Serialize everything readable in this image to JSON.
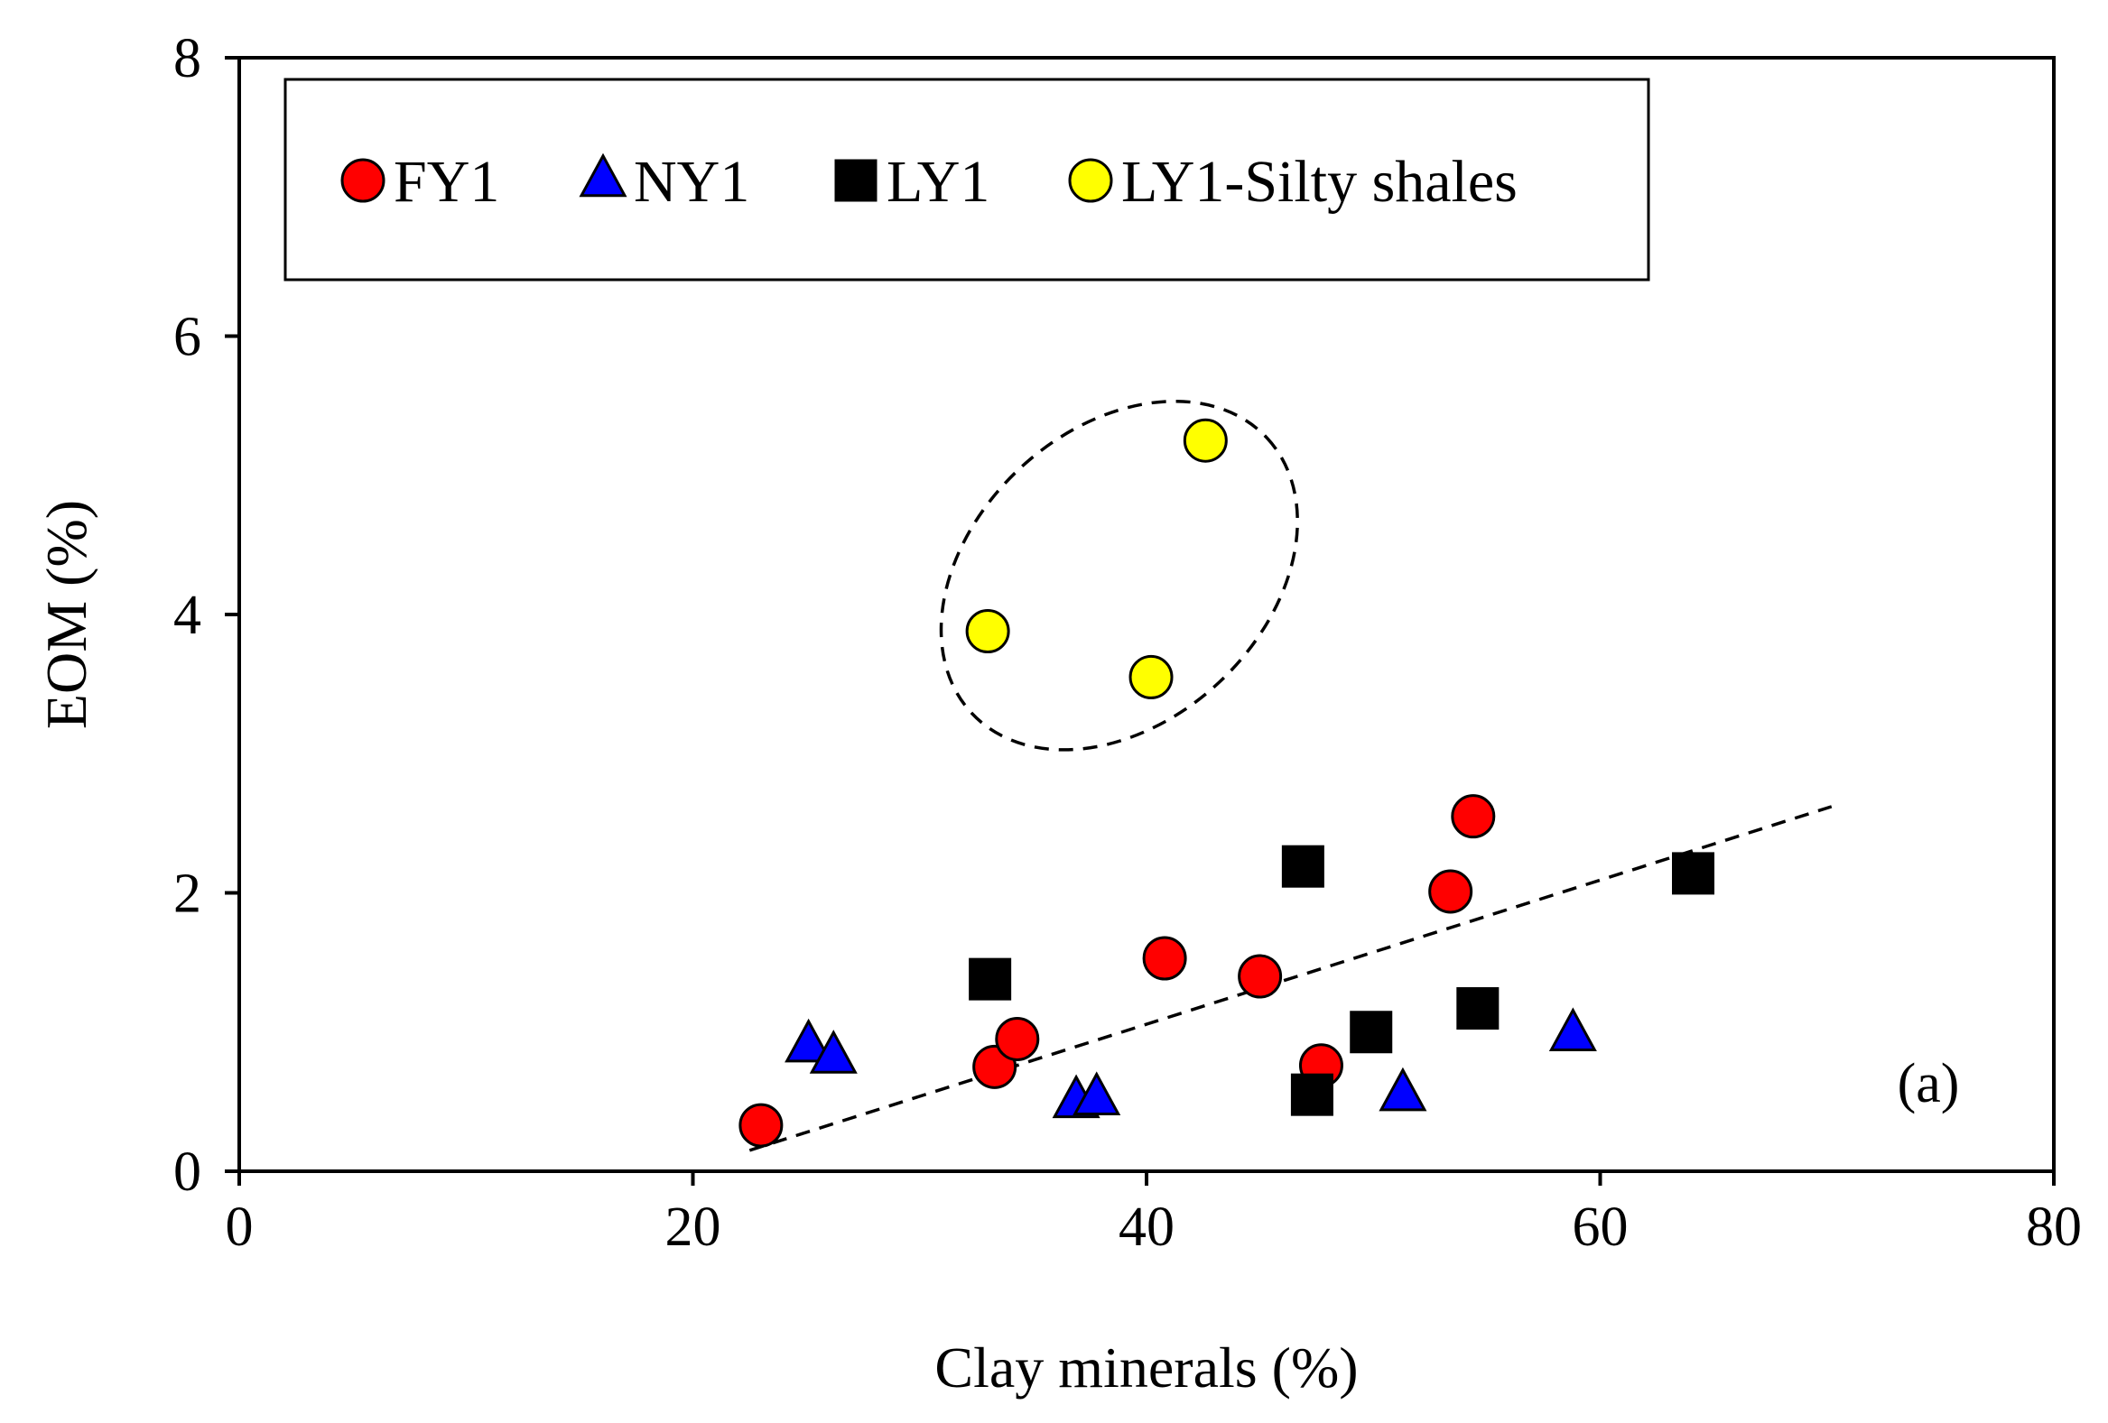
{
  "chart_data": {
    "type": "scatter",
    "xlabel": "Clay minerals (%)",
    "ylabel": "EOM (%)",
    "xlim": [
      0,
      80
    ],
    "ylim": [
      0,
      8
    ],
    "xticks": [
      0,
      20,
      40,
      60,
      80
    ],
    "yticks": [
      0,
      2,
      4,
      6,
      8
    ],
    "grid": false,
    "legend_position": "top-left",
    "panel_label": "(a)",
    "series": [
      {
        "name": "FY1",
        "marker": "circle",
        "color": "#ff0000",
        "points": [
          [
            23.0,
            0.33
          ],
          [
            33.3,
            0.75
          ],
          [
            34.3,
            0.95
          ],
          [
            40.8,
            1.53
          ],
          [
            45.0,
            1.4
          ],
          [
            47.7,
            0.76
          ],
          [
            53.4,
            2.01
          ],
          [
            54.4,
            2.55
          ]
        ]
      },
      {
        "name": "NY1",
        "marker": "triangle",
        "color": "#0000ff",
        "points": [
          [
            25.1,
            0.9
          ],
          [
            26.2,
            0.82
          ],
          [
            36.9,
            0.5
          ],
          [
            37.8,
            0.52
          ],
          [
            51.3,
            0.55
          ],
          [
            58.8,
            0.98
          ]
        ]
      },
      {
        "name": "LY1",
        "marker": "square",
        "color": "#000000",
        "points": [
          [
            33.1,
            1.38
          ],
          [
            46.9,
            2.19
          ],
          [
            47.3,
            0.55
          ],
          [
            49.9,
            1.0
          ],
          [
            54.6,
            1.17
          ],
          [
            64.1,
            2.14
          ]
        ]
      },
      {
        "name": "LY1-Silty shales",
        "marker": "circle",
        "color": "#ffff00",
        "points": [
          [
            33.0,
            3.88
          ],
          [
            40.2,
            3.55
          ],
          [
            42.6,
            5.25
          ]
        ]
      }
    ],
    "trendline": {
      "style": "dashed",
      "x": [
        22.5,
        70.2
      ],
      "y": [
        0.15,
        2.62
      ]
    },
    "cluster_ellipse": {
      "style": "dashed",
      "around_series": "LY1-Silty shales",
      "cx": 38.8,
      "cy": 4.28,
      "rx": 8.9,
      "ry": 1.05,
      "rotation_deg": -43
    }
  }
}
